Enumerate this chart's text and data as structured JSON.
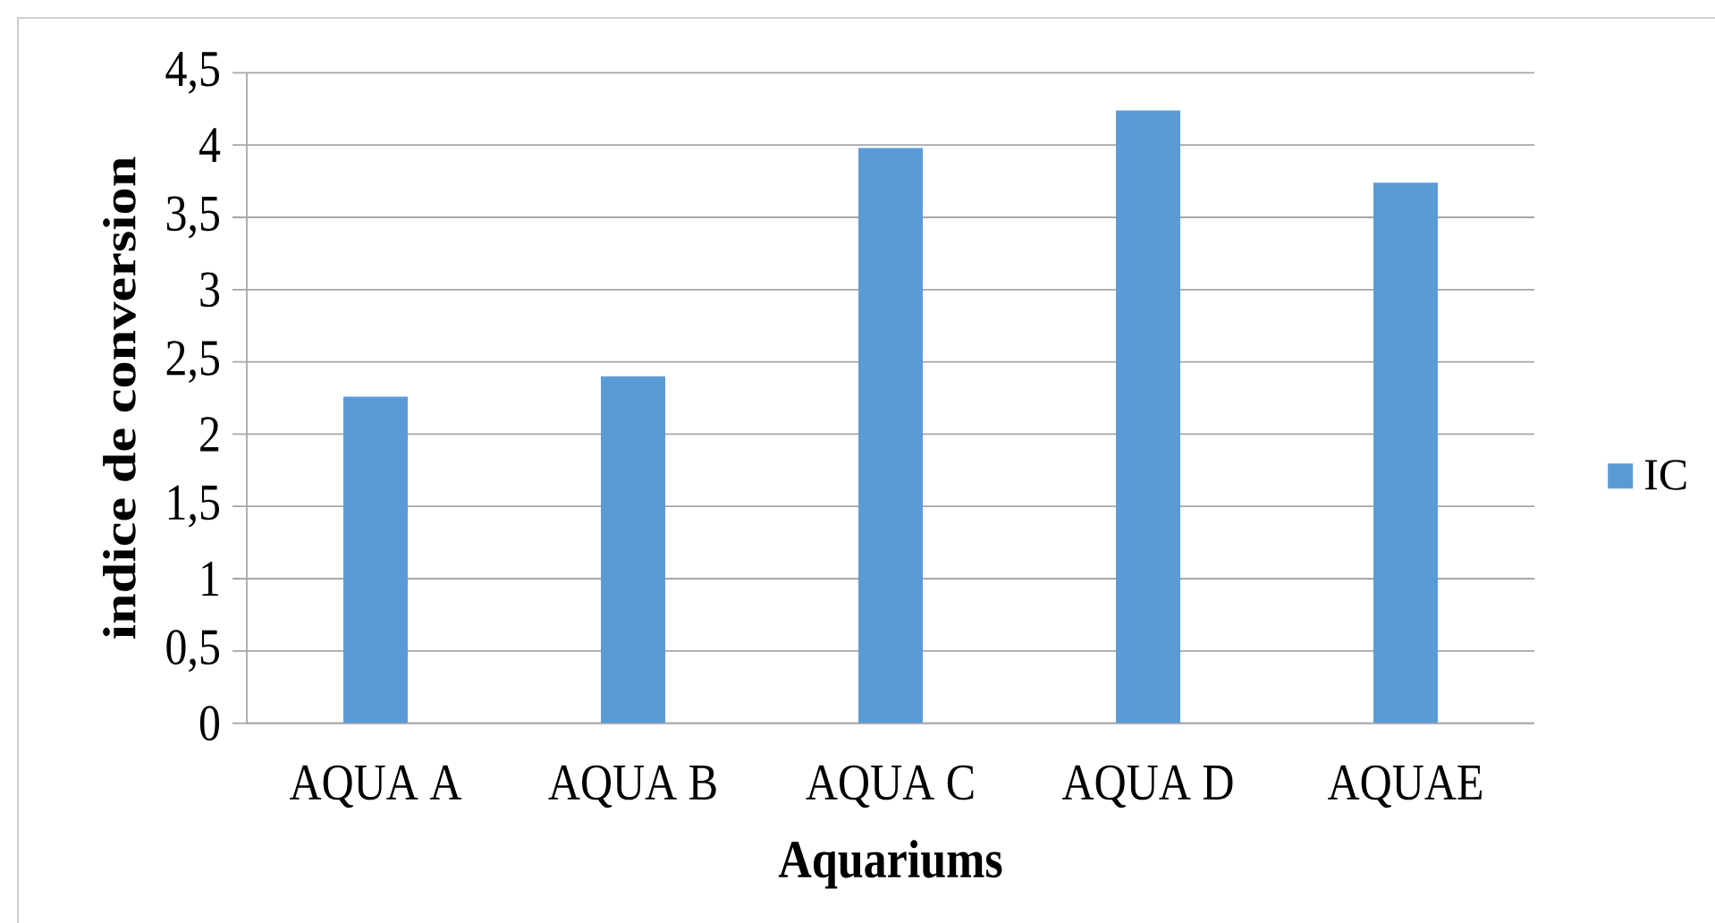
{
  "chart_data": {
    "type": "bar",
    "xlabel": "Aquariums",
    "ylabel": "indice de conversion",
    "categories": [
      "AQUA A",
      "AQUA B",
      "AQUA C",
      "AQUA D",
      "AQUAE"
    ],
    "series": [
      {
        "name": "IC",
        "color": "#5b9bd5",
        "values": [
          2.26,
          2.4,
          3.98,
          4.24,
          3.74
        ]
      }
    ],
    "ylim": [
      0,
      4.5
    ],
    "yticks": [
      0,
      {
        "value": 0.5,
        "label": "0,5"
      },
      1,
      {
        "value": 1.5,
        "label": "1,5"
      },
      2,
      {
        "value": 2.5,
        "label": "2,5"
      },
      3,
      {
        "value": 3.5,
        "label": "3,5"
      },
      4,
      {
        "value": 4.5,
        "label": "4,5"
      }
    ],
    "grid": "y",
    "legend": "right"
  }
}
